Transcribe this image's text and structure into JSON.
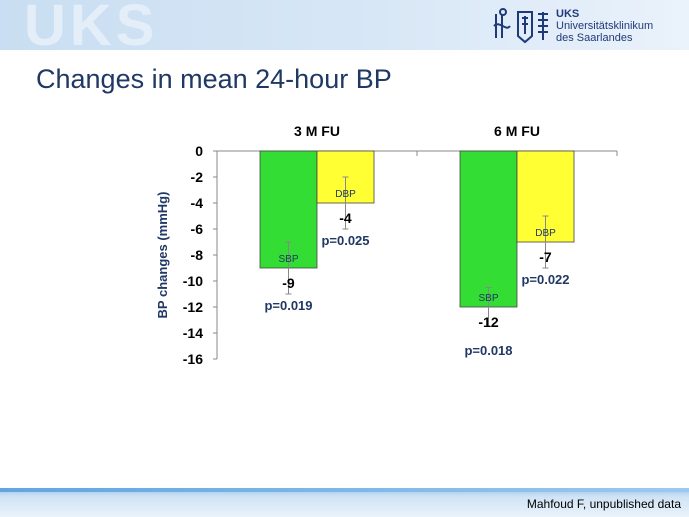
{
  "header": {
    "watermark": "UKS",
    "logo_abbr": "UKS",
    "logo_line1": "Universitätsklinikum",
    "logo_line2": "des Saarlandes"
  },
  "slide": {
    "title": "Changes in mean 24-hour BP",
    "source": "Mahfoud F, unpublished data"
  },
  "colors": {
    "sbp": "#33dd33",
    "dbp": "#ffff33",
    "pvalue": "#1f3864",
    "title": "#1f3864"
  },
  "chart_data": {
    "type": "bar",
    "categories": [
      "3 M FU",
      "6 M FU"
    ],
    "series": [
      {
        "name": "SBP",
        "values": [
          -9,
          -12
        ],
        "value_labels": [
          "-9",
          "-12"
        ],
        "p_values": [
          "p=0.019",
          "p=0.018"
        ],
        "error": [
          2,
          1.5
        ]
      },
      {
        "name": "DBP",
        "values": [
          -4,
          -7
        ],
        "value_labels": [
          "-4",
          "-7"
        ],
        "p_values": [
          "p=0.025",
          "p=0.022"
        ],
        "error": [
          2,
          2
        ]
      }
    ],
    "ylabel": "BP changes (mmHg)",
    "ylim": [
      -16,
      0
    ],
    "yticks": [
      "0",
      "-2",
      "-4",
      "-6",
      "-8",
      "-10",
      "-12",
      "-14",
      "-16"
    ],
    "category_labels_position": "top",
    "grid": false,
    "legend": "none"
  }
}
